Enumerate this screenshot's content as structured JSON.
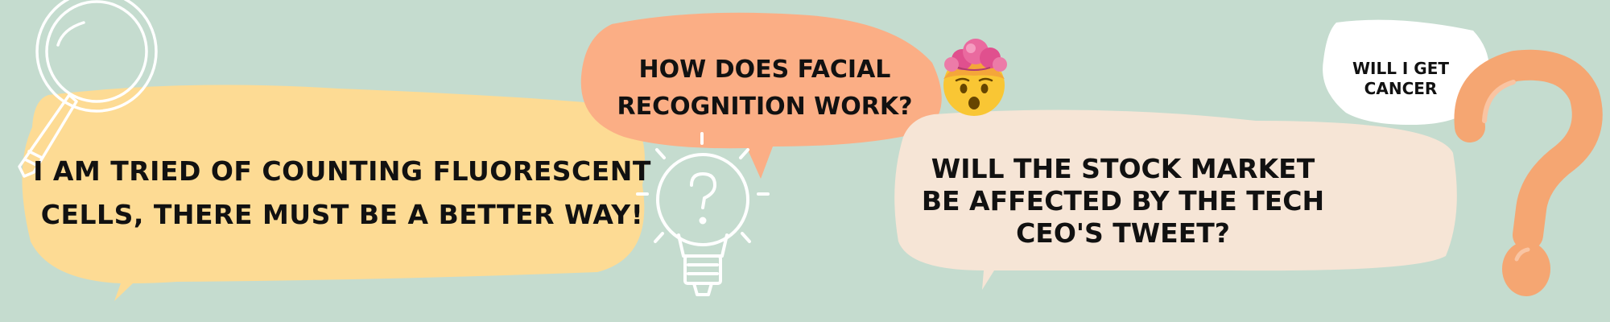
{
  "bubbles": {
    "cells": "I AM TRIED OF COUNTING FLUORESCENT CELLS, THERE MUST BE A BETTER WAY!",
    "facial": "HOW DOES FACIAL RECOGNITION WORK?",
    "stock": "WILL THE STOCK MARKET  BE AFFECTED BY THE TECH CEO'S TWEET?",
    "cancer": "WILL I GET CANCER"
  },
  "icons": {
    "magnifier": "magnifying-glass-icon",
    "bulb": "lightbulb-question-icon",
    "emoji": "exploding-head-emoji-icon",
    "question": "question-mark-icon"
  },
  "colors": {
    "background": "#c5dccf",
    "yellow_bubble": "#fddb94",
    "orange_bubble": "#fbae85",
    "cream_bubble": "#f6e5d6",
    "white_bubble": "#ffffff",
    "question_mark": "#f5a672"
  }
}
